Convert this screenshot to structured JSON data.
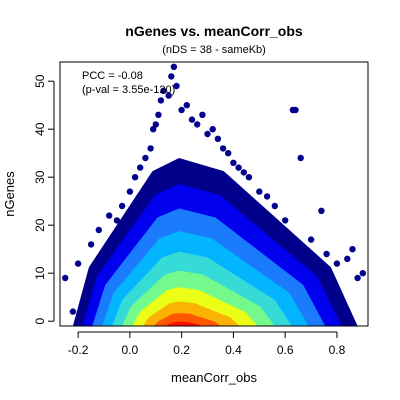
{
  "chart_data": {
    "type": "scatter",
    "title": "nGenes vs. meanCorr_obs",
    "subtitle": "(nDS = 38 - sameKb)",
    "xlabel": "meanCorr_obs",
    "ylabel": "nGenes",
    "xlim": [
      -0.27,
      0.92
    ],
    "ylim": [
      -1,
      54
    ],
    "x_ticks": [
      -0.2,
      0.0,
      0.2,
      0.4,
      0.6,
      0.8
    ],
    "x_tick_labels": [
      "-0.2",
      "0.0",
      "0.2",
      "0.4",
      "0.6",
      "0.8"
    ],
    "y_ticks": [
      0,
      10,
      20,
      30,
      40,
      50
    ],
    "y_tick_labels": [
      "0",
      "10",
      "20",
      "30",
      "40",
      "50"
    ],
    "annotations": [
      "PCC = -0.08",
      "(p-val = 3.55e-120)"
    ],
    "density_colors": [
      "#00008b",
      "#0000ff",
      "#1e90ff",
      "#00bfff",
      "#40e0d0",
      "#7fff7f",
      "#ffff00",
      "#ffa500",
      "#ff4500",
      "#ff0000"
    ],
    "series": [
      {
        "values": [
          {
            "x": -0.25,
            "y": 9
          },
          {
            "x": -0.22,
            "y": 2
          },
          {
            "x": -0.2,
            "y": 12
          },
          {
            "x": -0.18,
            "y": 4
          },
          {
            "x": -0.15,
            "y": 16
          },
          {
            "x": -0.12,
            "y": 19
          },
          {
            "x": -0.08,
            "y": 22
          },
          {
            "x": -0.05,
            "y": 21
          },
          {
            "x": -0.03,
            "y": 24
          },
          {
            "x": 0.0,
            "y": 27
          },
          {
            "x": 0.02,
            "y": 30
          },
          {
            "x": 0.04,
            "y": 32
          },
          {
            "x": 0.06,
            "y": 34
          },
          {
            "x": 0.08,
            "y": 36
          },
          {
            "x": 0.09,
            "y": 40
          },
          {
            "x": 0.1,
            "y": 41
          },
          {
            "x": 0.11,
            "y": 43
          },
          {
            "x": 0.12,
            "y": 46
          },
          {
            "x": 0.13,
            "y": 48
          },
          {
            "x": 0.15,
            "y": 47
          },
          {
            "x": 0.16,
            "y": 51
          },
          {
            "x": 0.17,
            "y": 53
          },
          {
            "x": 0.18,
            "y": 49
          },
          {
            "x": 0.2,
            "y": 44
          },
          {
            "x": 0.22,
            "y": 45
          },
          {
            "x": 0.24,
            "y": 42
          },
          {
            "x": 0.26,
            "y": 41
          },
          {
            "x": 0.28,
            "y": 43
          },
          {
            "x": 0.3,
            "y": 39
          },
          {
            "x": 0.32,
            "y": 40
          },
          {
            "x": 0.34,
            "y": 38
          },
          {
            "x": 0.36,
            "y": 36
          },
          {
            "x": 0.38,
            "y": 35
          },
          {
            "x": 0.4,
            "y": 33
          },
          {
            "x": 0.42,
            "y": 32
          },
          {
            "x": 0.44,
            "y": 31
          },
          {
            "x": 0.46,
            "y": 30
          },
          {
            "x": 0.5,
            "y": 27
          },
          {
            "x": 0.53,
            "y": 26
          },
          {
            "x": 0.56,
            "y": 24
          },
          {
            "x": 0.6,
            "y": 21
          },
          {
            "x": 0.63,
            "y": 44
          },
          {
            "x": 0.64,
            "y": 44
          },
          {
            "x": 0.66,
            "y": 34
          },
          {
            "x": 0.7,
            "y": 17
          },
          {
            "x": 0.74,
            "y": 23
          },
          {
            "x": 0.76,
            "y": 14
          },
          {
            "x": 0.8,
            "y": 12
          },
          {
            "x": 0.84,
            "y": 13
          },
          {
            "x": 0.86,
            "y": 15
          },
          {
            "x": 0.88,
            "y": 9
          },
          {
            "x": 0.9,
            "y": 10
          }
        ]
      }
    ]
  }
}
